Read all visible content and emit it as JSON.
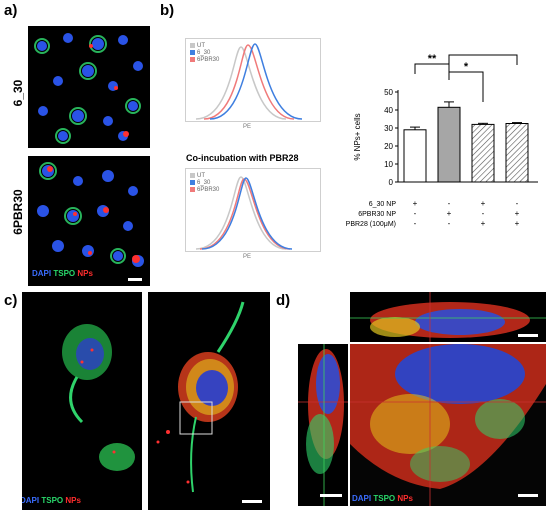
{
  "panels": {
    "a": "a)",
    "b": "b)",
    "c": "c)",
    "d": "d)"
  },
  "row_labels": {
    "top": "6_30",
    "bottom": "6PBR30"
  },
  "channel_legend": {
    "dapi": "DAPI",
    "tspo": "TSPO",
    "nps": "NPs"
  },
  "histograms": {
    "top": {
      "legend": [
        "UT",
        "6_30",
        "6PBR30"
      ],
      "xlabel": "PE"
    },
    "bottom": {
      "title": "Co-incubation with PBR28",
      "legend": [
        "UT",
        "6_30",
        "6PBR30"
      ],
      "xlabel": "PE"
    },
    "colors": {
      "UT": "#c8c8c8",
      "6_30": "#3f7fe0",
      "6PBR30": "#f07a7a"
    }
  },
  "chart_data": {
    "type": "bar",
    "ylabel": "% NPs+ cells",
    "ylim": [
      0,
      50
    ],
    "yticks": [
      0,
      10,
      20,
      30,
      40,
      50
    ],
    "values": [
      29,
      41.5,
      32,
      32.5
    ],
    "errors": [
      1.5,
      3,
      0.6,
      0.5
    ],
    "fills": [
      "white",
      "grey",
      "hatched",
      "hatched"
    ],
    "significance": [
      {
        "from": 0,
        "to": 1,
        "label": "**"
      },
      {
        "from": 1,
        "to": 2,
        "label": "*"
      },
      {
        "from": 1,
        "to": 3,
        "label": "*"
      }
    ],
    "conditions": [
      {
        "label": "6_30  NP",
        "marks": [
          "+",
          "-",
          "+",
          "-"
        ]
      },
      {
        "label": "6PBR30  NP",
        "marks": [
          "-",
          "+",
          "-",
          "+"
        ]
      },
      {
        "label": "PBR28 (100μM)",
        "marks": [
          "-",
          "-",
          "+",
          "+"
        ]
      }
    ]
  }
}
